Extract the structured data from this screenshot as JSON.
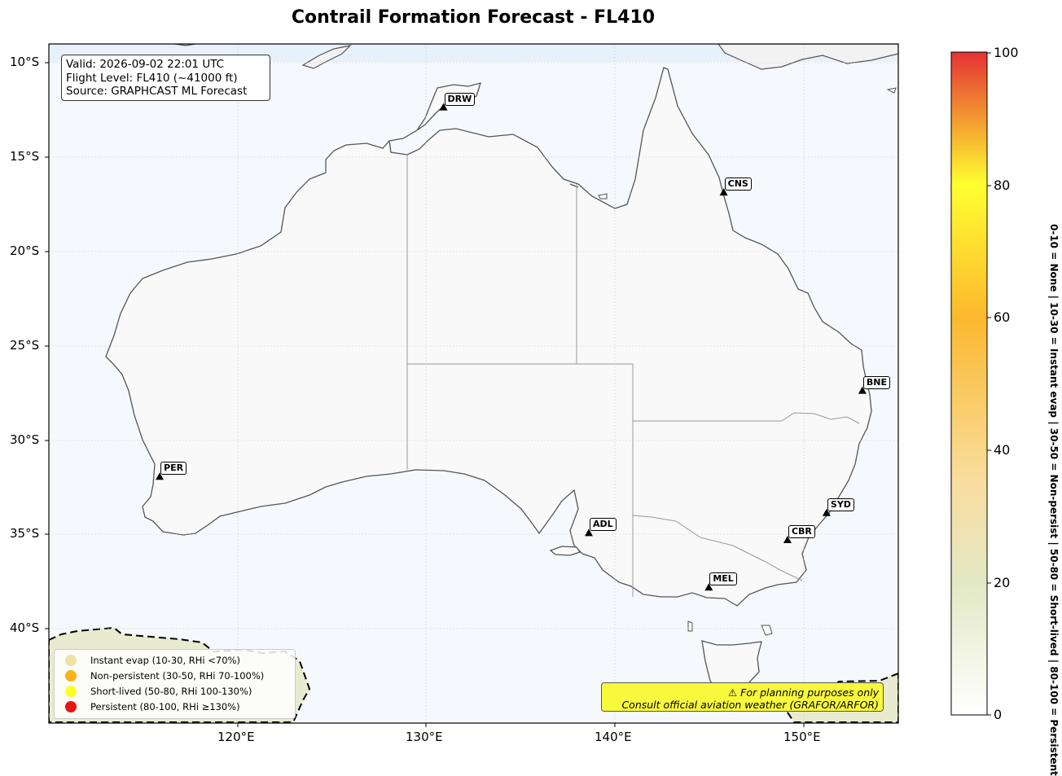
{
  "title": "Contrail Formation Forecast - FL410",
  "info": {
    "valid": "Valid: 2026-09-02 22:01 UTC",
    "flight_level": "Flight Level: FL410 (~41000 ft)",
    "source": "Source: GRAPHCAST ML Forecast"
  },
  "lat_labels": [
    "10°S",
    "15°S",
    "20°S",
    "25°S",
    "30°S",
    "35°S",
    "40°S"
  ],
  "lon_labels": [
    "120°E",
    "130°E",
    "140°E",
    "150°E"
  ],
  "airports": [
    {
      "code": "DRW",
      "lat": -12.4,
      "lon": 130.9
    },
    {
      "code": "CNS",
      "lat": -16.9,
      "lon": 145.75
    },
    {
      "code": "BNE",
      "lat": -27.4,
      "lon": 153.1
    },
    {
      "code": "PER",
      "lat": -31.95,
      "lon": 115.86
    },
    {
      "code": "ADL",
      "lat": -34.93,
      "lon": 138.6
    },
    {
      "code": "SYD",
      "lat": -33.87,
      "lon": 151.2
    },
    {
      "code": "CBR",
      "lat": -35.3,
      "lon": 149.13
    },
    {
      "code": "MEL",
      "lat": -37.81,
      "lon": 144.96
    }
  ],
  "legend": [
    {
      "label": "Instant evap (10-30, RHi <70%)",
      "color": "#efe2a8"
    },
    {
      "label": "Non-persistent (30-50, RHi 70-100%)",
      "color": "#fbb418"
    },
    {
      "label": "Short-lived (50-80, RHi 100-130%)",
      "color": "#ffff26"
    },
    {
      "label": "Persistent (80-100, RHi ≥130%)",
      "color": "#e61414"
    }
  ],
  "warning": {
    "line1": "⚠ For planning purposes only",
    "line2": "Consult official aviation weather (GRAFOR/ARFOR)"
  },
  "colorbar": {
    "ticks": [
      "0",
      "20",
      "40",
      "60",
      "80",
      "100"
    ],
    "caption": "0-10 = None  |  10-30 = Instant evap  |  30-50 = Non-persist  |  50-80 = Short-lived  |  80-100 = Persistent",
    "colors": [
      "#ffffff",
      "#e3e8c4",
      "#f9dea0",
      "#fbb82e",
      "#ffff30",
      "#e63232"
    ]
  }
}
